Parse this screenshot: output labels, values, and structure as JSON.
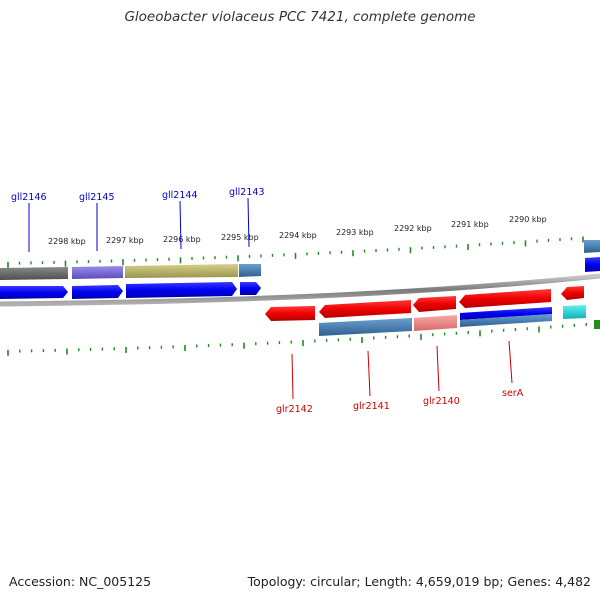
{
  "title": "Gloeobacter violaceus PCC 7421, complete genome",
  "footer": {
    "accession": "Accession: NC_005125",
    "summary": "Topology: circular; Length: 4,659,019 bp; Genes: 4,482"
  },
  "scale_labels": [
    "2298 kbp",
    "2297 kbp",
    "2296 kbp",
    "2295 kbp",
    "2294 kbp",
    "2293 kbp",
    "2292 kbp",
    "2291 kbp",
    "2290 kbp"
  ],
  "genes_forward_labels": [
    "gll2146",
    "gll2145",
    "gll2144",
    "gll2143"
  ],
  "genes_reverse_labels": [
    "glr2142",
    "glr2141",
    "glr2140",
    "serA"
  ],
  "colors": {
    "forward_strand": "#0000ff",
    "reverse_strand": "#ff0000",
    "forward_label": "#0000cc",
    "reverse_label": "#cc0000",
    "tick": "#228b22",
    "backbone": "#888888",
    "cog_gray": "#6e6e6e",
    "cog_purple": "#7b68d8",
    "cog_olive": "#bdb76b",
    "cog_steelblue": "#4682b4",
    "cog_salmon": "#f08080",
    "cog_cyan": "#20c0c8"
  }
}
